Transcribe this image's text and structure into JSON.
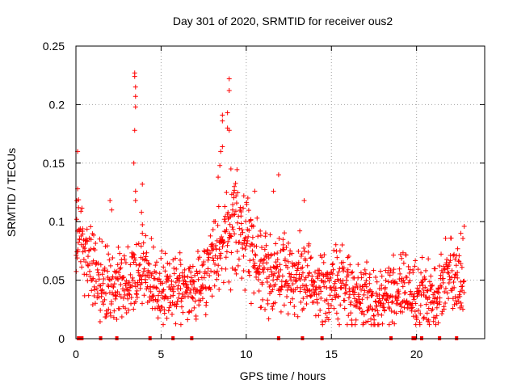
{
  "chart_data": {
    "type": "scatter",
    "title": "Day 301 of 2020, SRMTID for receiver ous2",
    "xlabel": "GPS time / hours",
    "ylabel": "SRMTID / TECUs",
    "xlim": [
      0,
      24
    ],
    "ylim": [
      0,
      0.25
    ],
    "x_ticks": [
      0,
      5,
      10,
      15,
      20
    ],
    "x_tick_labels": [
      "0",
      "5",
      "10",
      "15",
      "20"
    ],
    "y_ticks": [
      0,
      0.05,
      0.1,
      0.15,
      0.2,
      0.25
    ],
    "y_tick_labels": [
      "0",
      "0.05",
      "0.1",
      "0.15",
      "0.2",
      "0.25"
    ],
    "grid": true,
    "marker": "+",
    "marker_color": "#ff0000",
    "trend": [
      [
        0.0,
        0.075
      ],
      [
        0.3,
        0.09
      ],
      [
        0.6,
        0.068
      ],
      [
        1.0,
        0.06
      ],
      [
        1.5,
        0.052
      ],
      [
        2.0,
        0.048
      ],
      [
        2.5,
        0.05
      ],
      [
        3.0,
        0.048
      ],
      [
        3.5,
        0.055
      ],
      [
        4.0,
        0.06
      ],
      [
        4.5,
        0.048
      ],
      [
        5.0,
        0.042
      ],
      [
        5.5,
        0.04
      ],
      [
        6.0,
        0.042
      ],
      [
        6.5,
        0.04
      ],
      [
        7.0,
        0.045
      ],
      [
        7.5,
        0.05
      ],
      [
        8.0,
        0.065
      ],
      [
        8.5,
        0.08
      ],
      [
        9.0,
        0.092
      ],
      [
        9.5,
        0.095
      ],
      [
        10.0,
        0.09
      ],
      [
        10.5,
        0.075
      ],
      [
        11.0,
        0.06
      ],
      [
        11.5,
        0.055
      ],
      [
        12.0,
        0.058
      ],
      [
        12.5,
        0.055
      ],
      [
        13.0,
        0.052
      ],
      [
        13.5,
        0.05
      ],
      [
        14.0,
        0.045
      ],
      [
        14.5,
        0.042
      ],
      [
        15.0,
        0.045
      ],
      [
        15.5,
        0.048
      ],
      [
        16.0,
        0.042
      ],
      [
        16.5,
        0.038
      ],
      [
        17.0,
        0.035
      ],
      [
        17.5,
        0.03
      ],
      [
        18.0,
        0.035
      ],
      [
        18.5,
        0.04
      ],
      [
        19.0,
        0.042
      ],
      [
        19.5,
        0.04
      ],
      [
        20.0,
        0.038
      ],
      [
        20.5,
        0.035
      ],
      [
        21.0,
        0.032
      ],
      [
        21.5,
        0.05
      ],
      [
        22.0,
        0.055
      ],
      [
        22.5,
        0.052
      ],
      [
        22.8,
        0.055
      ]
    ],
    "outliers": [
      [
        0.1,
        0.16
      ],
      [
        0.1,
        0.128
      ],
      [
        0.05,
        0.118
      ],
      [
        0.15,
        0.112
      ],
      [
        3.45,
        0.227
      ],
      [
        3.45,
        0.224
      ],
      [
        3.5,
        0.215
      ],
      [
        3.5,
        0.207
      ],
      [
        3.5,
        0.198
      ],
      [
        3.45,
        0.178
      ],
      [
        3.4,
        0.15
      ],
      [
        3.5,
        0.126
      ],
      [
        3.5,
        0.118
      ],
      [
        3.9,
        0.132
      ],
      [
        3.85,
        0.108
      ],
      [
        3.9,
        0.09
      ],
      [
        4.1,
        0.088
      ],
      [
        2.0,
        0.118
      ],
      [
        2.1,
        0.11
      ],
      [
        8.6,
        0.191
      ],
      [
        8.6,
        0.186
      ],
      [
        8.6,
        0.164
      ],
      [
        8.5,
        0.16
      ],
      [
        8.45,
        0.148
      ],
      [
        8.35,
        0.138
      ],
      [
        9.0,
        0.222
      ],
      [
        9.0,
        0.212
      ],
      [
        8.9,
        0.193
      ],
      [
        8.9,
        0.18
      ],
      [
        9.0,
        0.178
      ],
      [
        9.1,
        0.145
      ],
      [
        9.3,
        0.13
      ],
      [
        9.4,
        0.122
      ],
      [
        9.2,
        0.11
      ],
      [
        11.9,
        0.14
      ],
      [
        11.6,
        0.126
      ],
      [
        13.4,
        0.118
      ],
      [
        11.6,
        0.03
      ],
      [
        10.5,
        0.126
      ],
      [
        22.8,
        0.096
      ],
      [
        22.6,
        0.09
      ]
    ],
    "gap_markers": [
      0.15,
      0.3,
      0.35,
      1.45,
      2.4,
      4.35,
      5.7,
      6.8,
      11.9,
      13.3,
      14.45,
      18.5,
      19.8,
      19.9,
      20.3,
      21.35,
      22.35
    ]
  }
}
